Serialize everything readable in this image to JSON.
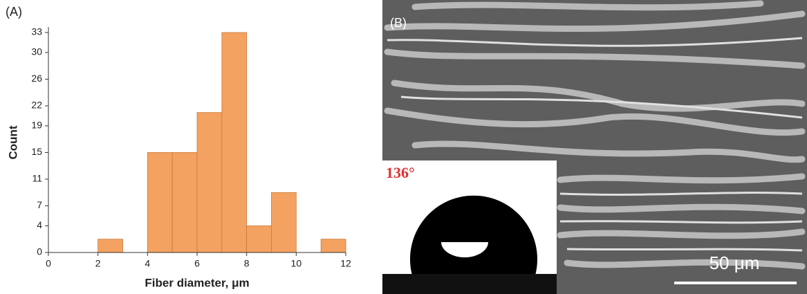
{
  "chart_data": {
    "type": "histogram",
    "panel_label": "(A)",
    "x_label": "Fiber diameter, μm",
    "y_label": "Count",
    "bins": [
      2,
      3,
      4,
      5,
      6,
      7,
      8,
      9,
      10,
      11,
      12
    ],
    "values": [
      2,
      0,
      15,
      15,
      21,
      33,
      4,
      9,
      0,
      2
    ],
    "color": "#f4a261",
    "xlim": [
      0,
      12
    ],
    "xticks": [
      0,
      2,
      4,
      6,
      8,
      10,
      12
    ],
    "ylim": [
      0,
      33
    ],
    "yticks": [
      0,
      4,
      7,
      11,
      15,
      19,
      22,
      26,
      30,
      33
    ]
  },
  "image": {
    "panel_label": "(B)",
    "contact_angle": "136°",
    "scale_bar": "50 μm"
  }
}
